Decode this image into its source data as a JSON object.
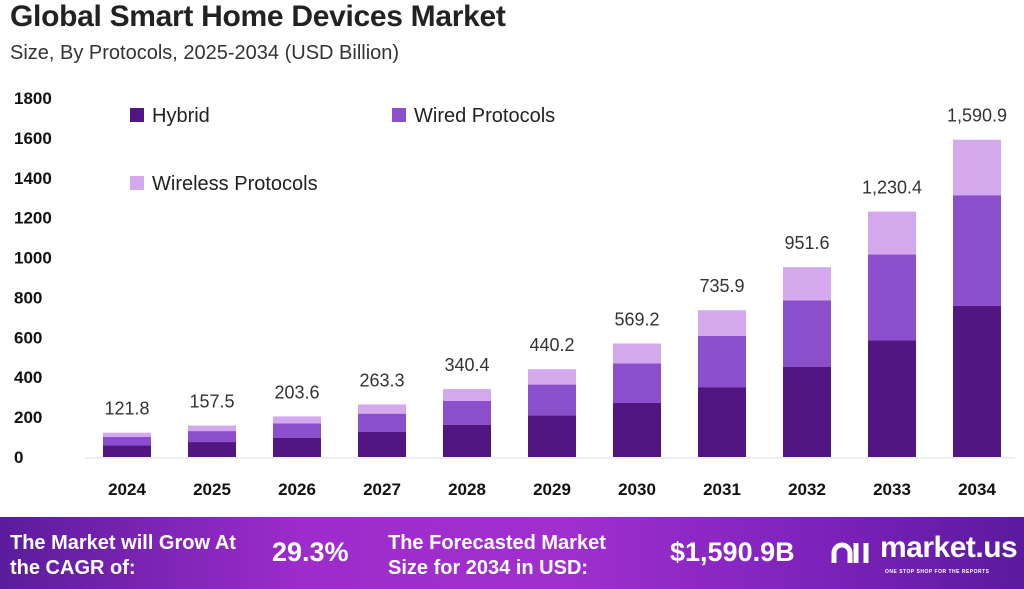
{
  "chart_data": {
    "type": "bar",
    "stacked": true,
    "title": "Global Smart Home Devices Market",
    "subtitle": "Size, By Protocols, 2025-2034 (USD Billion)",
    "xlabel": "",
    "ylabel": "",
    "ylim": [
      0,
      1800
    ],
    "yticks": [
      0,
      200,
      400,
      600,
      800,
      1000,
      1200,
      1400,
      1600,
      1800
    ],
    "grid": false,
    "legend_position": "top-left",
    "categories": [
      "2024",
      "2025",
      "2026",
      "2027",
      "2028",
      "2029",
      "2030",
      "2031",
      "2032",
      "2033",
      "2034"
    ],
    "totals": [
      121.8,
      157.5,
      203.6,
      263.3,
      340.4,
      440.2,
      569.2,
      735.9,
      951.6,
      1230.4,
      1590.9
    ],
    "total_labels": [
      "121.8",
      "157.5",
      "203.6",
      "263.3",
      "340.4",
      "440.2",
      "569.2",
      "735.9",
      "951.6",
      "1,230.4",
      "1,590.9"
    ],
    "series": [
      {
        "name": "Hybrid",
        "color": "#521683",
        "values": [
          58.0,
          75.0,
          96.9,
          125.3,
          162.0,
          209.5,
          270.9,
          350.3,
          453.0,
          585.7,
          757.3
        ]
      },
      {
        "name": "Wired Protocols",
        "color": "#8b4ecc",
        "values": [
          42.5,
          55.0,
          71.1,
          91.9,
          118.8,
          153.6,
          198.7,
          256.8,
          332.1,
          429.4,
          555.2
        ]
      },
      {
        "name": "Wireless Protocols",
        "color": "#d3a8ec",
        "values": [
          21.3,
          27.5,
          35.6,
          46.1,
          59.6,
          77.1,
          99.6,
          128.8,
          166.5,
          215.3,
          278.4
        ]
      }
    ]
  },
  "footer": {
    "cagr_label": "The Market will Grow At the CAGR of:",
    "cagr_value": "29.3%",
    "forecast_label": "The Forecasted Market Size for 2034 in USD:",
    "forecast_value": "$1,590.9B",
    "logo_text": "market.us",
    "logo_tagline": "ONE STOP SHOP FOR THE REPORTS"
  }
}
